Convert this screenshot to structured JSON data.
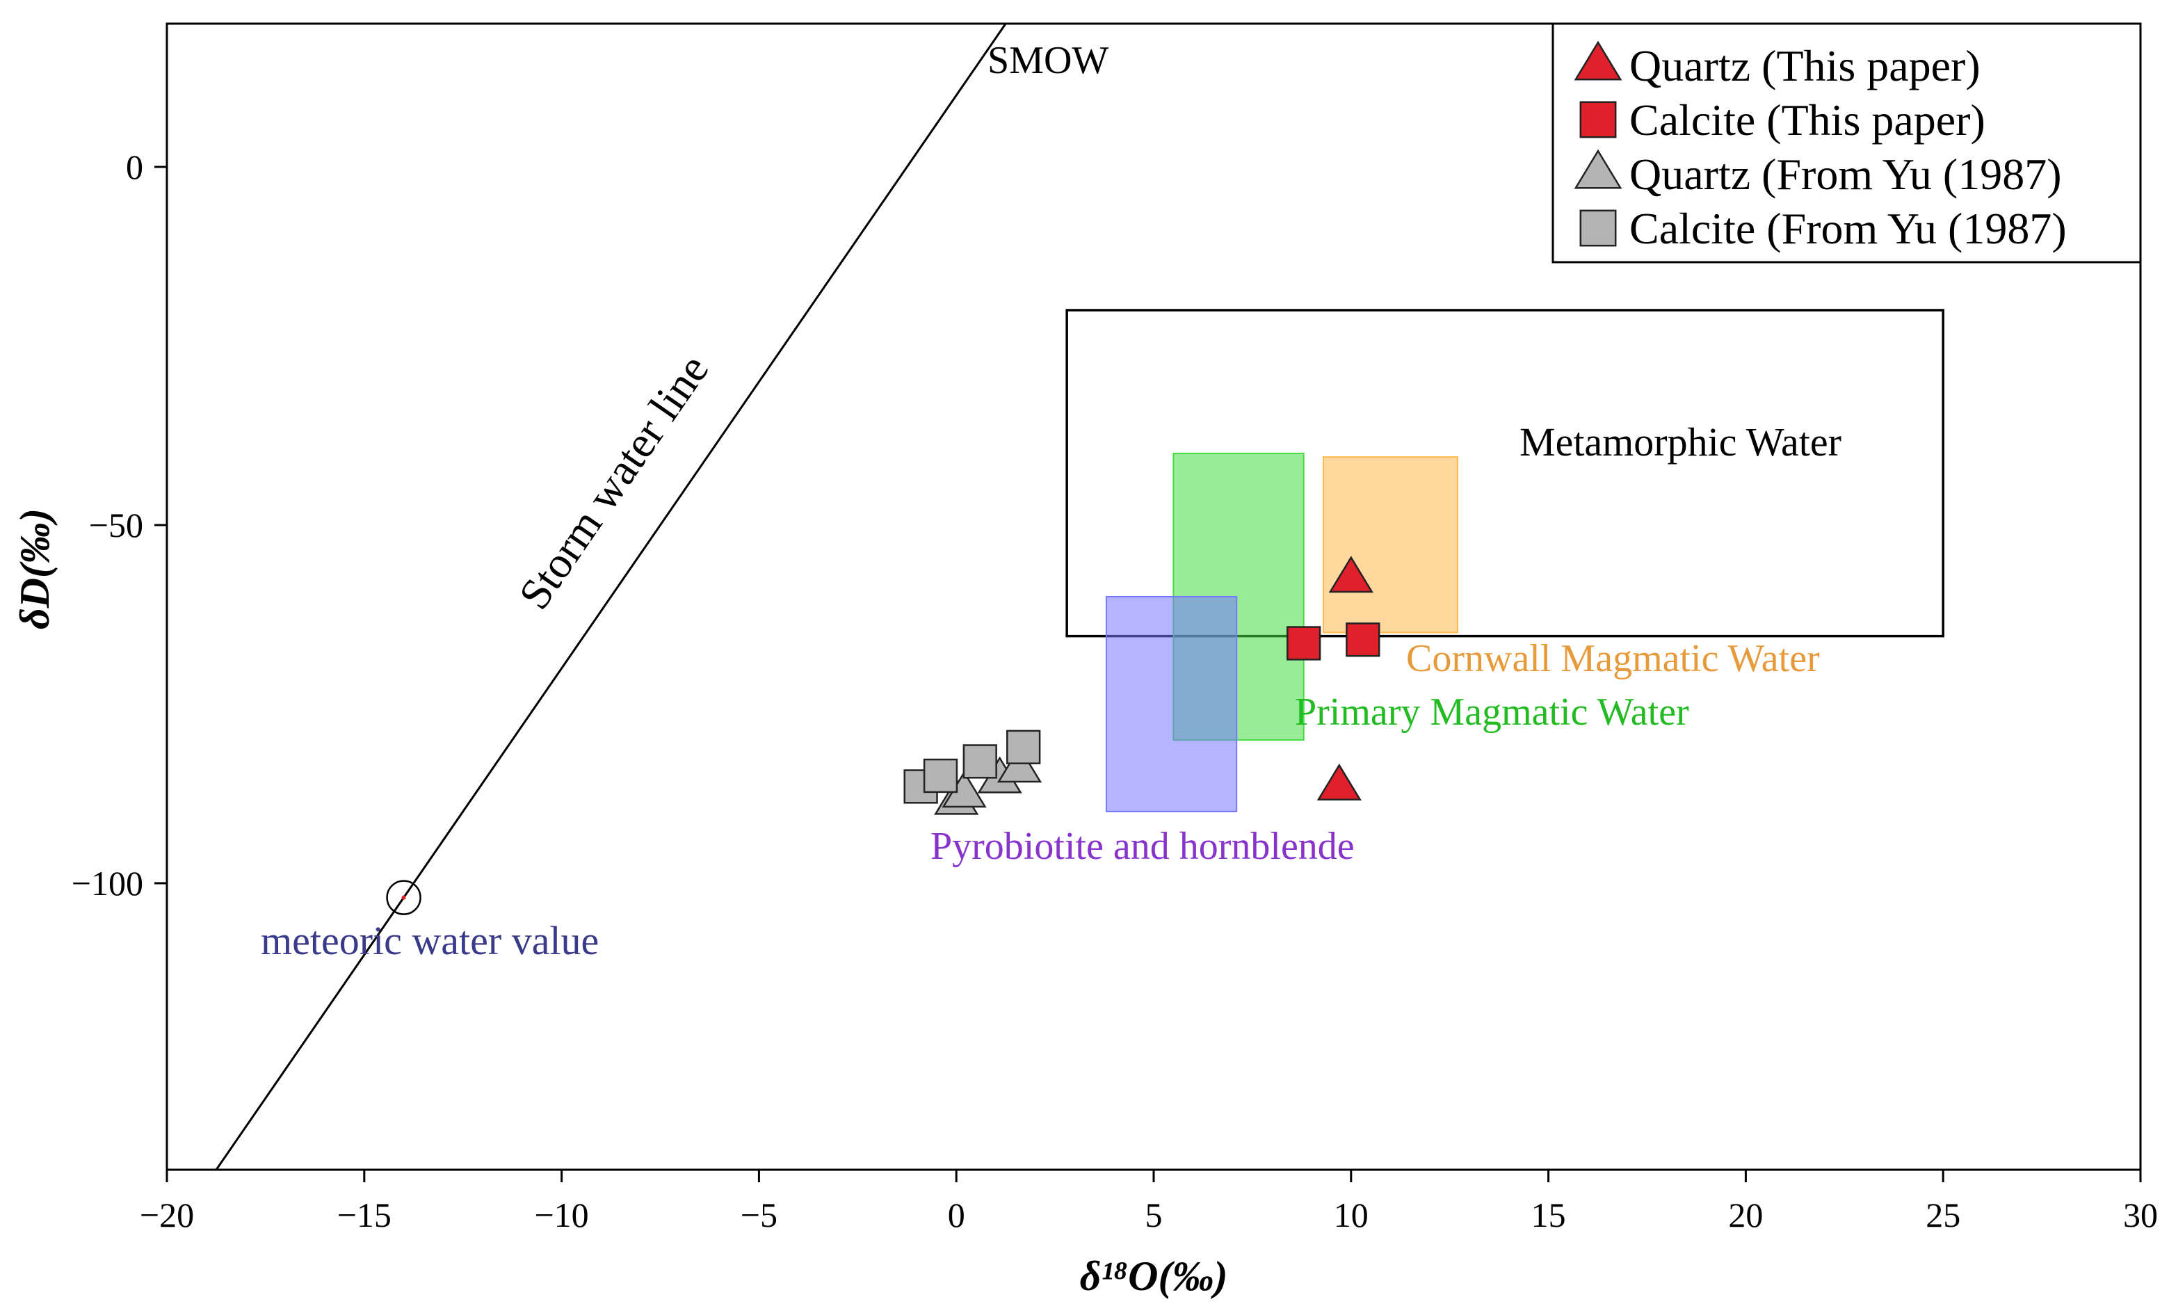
{
  "chart_data": {
    "type": "scatter",
    "title": "",
    "xlabel": "δ¹⁸O(‰)",
    "ylabel": "δD(‰)",
    "xlim": [
      -20,
      30
    ],
    "ylim": [
      -140,
      20
    ],
    "x_ticks": [
      -20,
      -15,
      -10,
      -5,
      0,
      5,
      10,
      15,
      20,
      25,
      30
    ],
    "x_tick_labels": [
      "−20",
      "−15",
      "−10",
      "−5",
      "0",
      "5",
      "10",
      "15",
      "20",
      "25",
      "30"
    ],
    "y_ticks": [
      0,
      -50,
      -100
    ],
    "y_tick_labels": [
      "0",
      "−50",
      "−100"
    ],
    "grid": false,
    "legend_position": "top-right",
    "series": [
      {
        "name": "Quartz (This paper)",
        "marker": "triangle",
        "color": "#e0202a",
        "points": [
          [
            10.0,
            -57.5
          ],
          [
            9.7,
            -86.5
          ]
        ]
      },
      {
        "name": "Calcite (This paper)",
        "marker": "square",
        "color": "#e0202a",
        "points": [
          [
            8.8,
            -66.5
          ],
          [
            10.3,
            -66
          ]
        ]
      },
      {
        "name": "Quartz (From Yu (1987)",
        "marker": "triangle",
        "color": "#b4b4b4",
        "points": [
          [
            0.0,
            -88.5
          ],
          [
            0.2,
            -87.5
          ],
          [
            1.1,
            -85.5
          ],
          [
            1.6,
            -84
          ]
        ]
      },
      {
        "name": "Calcite (From Yu (1987)",
        "marker": "square",
        "color": "#b4b4b4",
        "points": [
          [
            -0.9,
            -86.5
          ],
          [
            -0.4,
            -85
          ],
          [
            0.6,
            -83
          ],
          [
            1.7,
            -81
          ]
        ]
      }
    ],
    "regions": [
      {
        "name": "Metamorphic  Water",
        "x": [
          2.8,
          25
        ],
        "y": [
          -65.5,
          -20
        ],
        "fill": "none",
        "stroke": "#000000"
      },
      {
        "name": "Primary  Magmatic  Water",
        "x": [
          5.5,
          8.8
        ],
        "y": [
          -80,
          -40
        ],
        "fill": "#44dd44",
        "label_color": "#22bb22"
      },
      {
        "name": "Cornwall Magmatic Water",
        "x": [
          9.3,
          12.7
        ],
        "y": [
          -65,
          -40.5
        ],
        "fill": "#ffb84d",
        "label_color": "#e69a3a"
      },
      {
        "name": "Pyrobiotite and hornblende",
        "x": [
          3.8,
          7.1
        ],
        "y": [
          -90,
          -60
        ],
        "fill": "#7777ff",
        "label_color": "#8833cc"
      }
    ],
    "lines": [
      {
        "name": "Storm water line",
        "equation": "δD = 8δ¹⁸O + 10"
      }
    ],
    "annotations": [
      {
        "text": "SMOW",
        "x": 1.3,
        "y": 14.2
      },
      {
        "text": "meteoric water value",
        "x": -14.0,
        "y": -102,
        "color": "#3a3a8a"
      }
    ]
  }
}
